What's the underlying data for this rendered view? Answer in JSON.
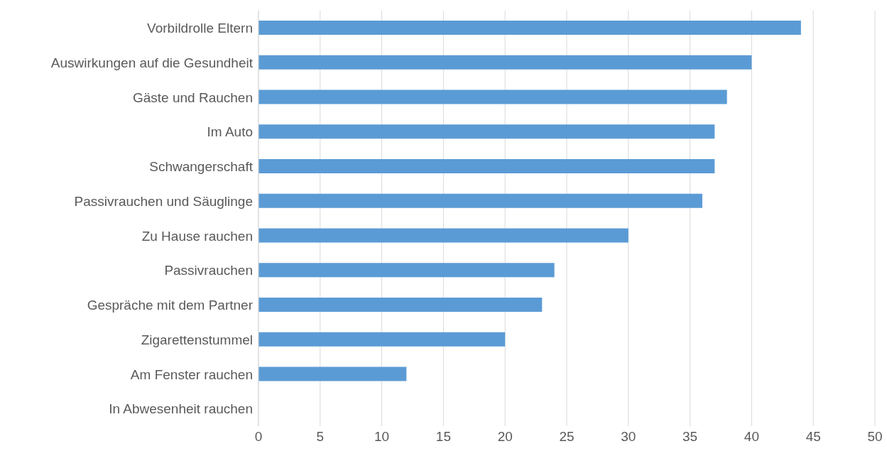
{
  "chart_data": {
    "type": "bar",
    "orientation": "horizontal",
    "categories": [
      "Vorbildrolle Eltern",
      "Auswirkungen auf die Gesundheit",
      "Gäste und Rauchen",
      "Im Auto",
      "Schwangerschaft",
      "Passivrauchen und Säuglinge",
      "Zu Hause rauchen",
      "Passivrauchen",
      "Gespräche mit dem Partner",
      "Zigarettenstummel",
      "Am Fenster rauchen",
      "In Abwesenheit rauchen"
    ],
    "values": [
      44,
      40,
      38,
      37,
      37,
      36,
      30,
      24,
      23,
      20,
      12,
      0
    ],
    "color": "#5b9bd5",
    "xlim": [
      0,
      50
    ],
    "xticks": [
      0,
      5,
      10,
      15,
      20,
      25,
      30,
      35,
      40,
      45,
      50
    ],
    "grid": "x"
  }
}
